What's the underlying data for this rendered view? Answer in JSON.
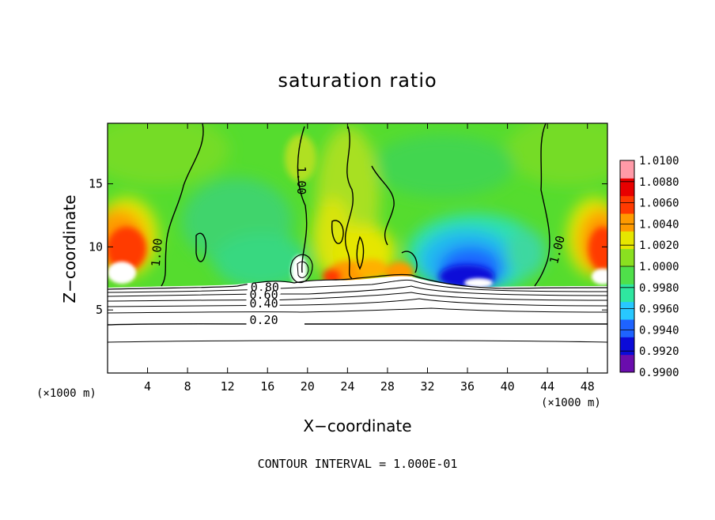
{
  "chart_data": {
    "type": "heatmap",
    "title": "saturation ratio",
    "xlabel": "X−coordinate",
    "ylabel": "Z−coordinate",
    "x_unit": "(×1000 m)",
    "x_ticks": [
      4,
      8,
      12,
      16,
      20,
      24,
      28,
      32,
      36,
      40,
      44,
      48
    ],
    "y_ticks": [
      5,
      10,
      15
    ],
    "xlim": [
      0,
      50
    ],
    "ylim": [
      0,
      19.8
    ],
    "colorbar": {
      "ticks": [
        "1.0100",
        "1.0080",
        "1.0060",
        "1.0040",
        "1.0020",
        "1.0000",
        "0.9980",
        "0.9960",
        "0.9940",
        "0.9920",
        "0.9900"
      ],
      "range": [
        0.99,
        1.01
      ],
      "colors": [
        "#6a0dad",
        "#0b0bd8",
        "#1e63ff",
        "#28c8ff",
        "#2fe6a0",
        "#4fe04a",
        "#8ae020",
        "#e6e600",
        "#ff9a00",
        "#ff3a00",
        "#e80000",
        "#ff9aa8"
      ]
    },
    "contour_labels": [
      {
        "text": "1.00",
        "x": 5.2,
        "z": 8.4,
        "angle": -85
      },
      {
        "text": "1.00",
        "x": 19.0,
        "z": 16.4,
        "angle": 90
      },
      {
        "text": "1.00",
        "x": 45.0,
        "z": 8.6,
        "angle": -75
      },
      {
        "text": "0.80",
        "x": 14.3,
        "z": 6.5,
        "angle": 0
      },
      {
        "text": "0.60",
        "x": 14.2,
        "z": 5.9,
        "angle": 0
      },
      {
        "text": "0.40",
        "x": 14.2,
        "z": 5.2,
        "angle": 0
      },
      {
        "text": "0.20",
        "x": 14.2,
        "z": 3.9,
        "angle": 0
      }
    ],
    "contour_interval": "CONTOUR INTERVAL = 1.000E-01"
  }
}
